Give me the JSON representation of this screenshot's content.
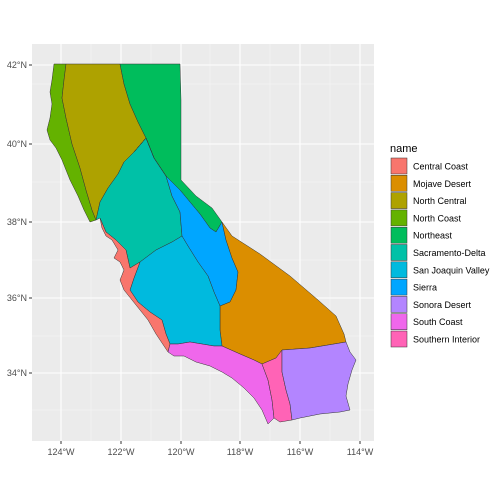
{
  "legend": {
    "title": "name",
    "items": [
      {
        "label": "Central Coast",
        "color": "#F8766D"
      },
      {
        "label": "Mojave Desert",
        "color": "#DB8E00"
      },
      {
        "label": "North Central",
        "color": "#AEA200"
      },
      {
        "label": "North Coast",
        "color": "#64B200"
      },
      {
        "label": "Northeast",
        "color": "#00BD5C"
      },
      {
        "label": "Sacramento-Delta",
        "color": "#00C1A7"
      },
      {
        "label": "San Joaquin Valley",
        "color": "#00BADE"
      },
      {
        "label": "Sierra",
        "color": "#00A6FF"
      },
      {
        "label": "Sonora Desert",
        "color": "#B385FF"
      },
      {
        "label": "South Coast",
        "color": "#EF67EB"
      },
      {
        "label": "Southern Interior",
        "color": "#FF63B6"
      }
    ]
  },
  "axes": {
    "x_ticks": [
      "124°W",
      "122°W",
      "120°W",
      "118°W",
      "116°W",
      "114°W"
    ],
    "y_ticks": [
      "34°N",
      "36°N",
      "38°N",
      "40°N",
      "42°N"
    ]
  },
  "colors": {
    "panel_background": "#EBEBEB",
    "grid_major": "#FFFFFF"
  }
}
